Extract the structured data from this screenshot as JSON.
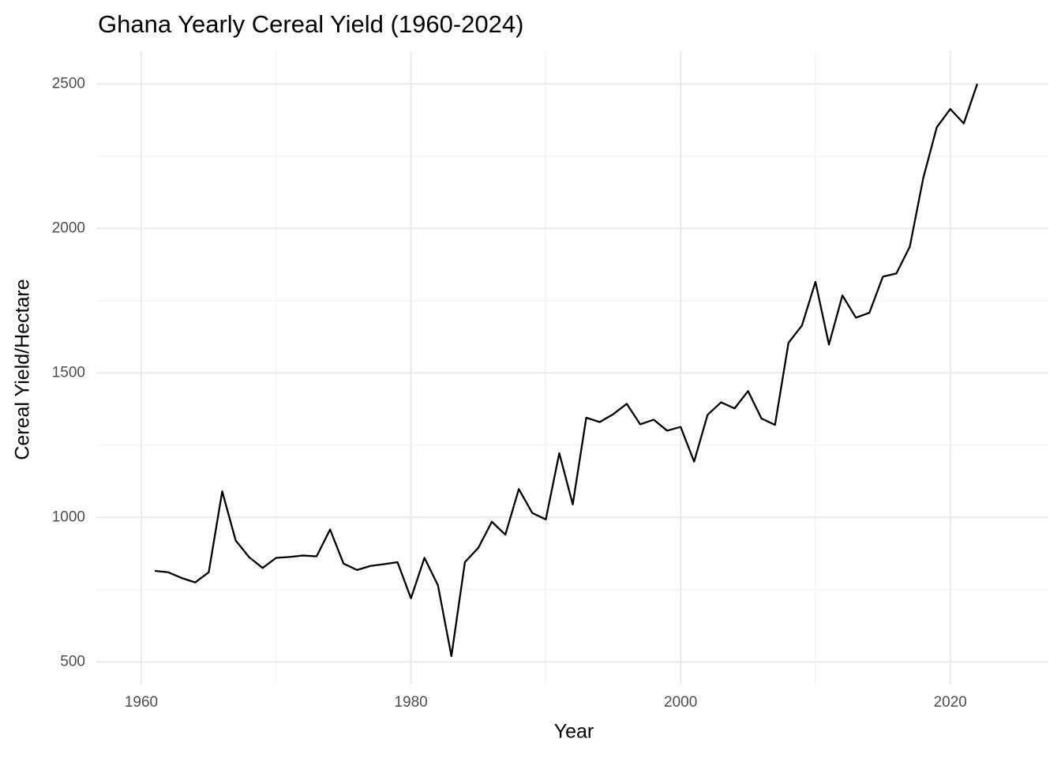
{
  "chart_data": {
    "type": "line",
    "title": "Ghana Yearly Cereal Yield (1960-2024)",
    "x_label": "Year",
    "y_label": "Cereal Yield/Hectare",
    "x": [
      1961,
      1962,
      1963,
      1964,
      1965,
      1966,
      1967,
      1968,
      1969,
      1970,
      1971,
      1972,
      1973,
      1974,
      1975,
      1976,
      1977,
      1978,
      1979,
      1980,
      1981,
      1982,
      1983,
      1984,
      1985,
      1986,
      1987,
      1988,
      1989,
      1990,
      1991,
      1992,
      1993,
      1994,
      1995,
      1996,
      1997,
      1998,
      1999,
      2000,
      2001,
      2002,
      2003,
      2004,
      2005,
      2006,
      2007,
      2008,
      2009,
      2010,
      2011,
      2012,
      2013,
      2014,
      2015,
      2016,
      2017,
      2018,
      2019,
      2020,
      2021,
      2022
    ],
    "values": [
      815,
      810,
      790,
      775,
      810,
      1090,
      920,
      862,
      825,
      860,
      863,
      868,
      865,
      958,
      840,
      818,
      832,
      838,
      845,
      720,
      860,
      765,
      520,
      845,
      895,
      985,
      940,
      1098,
      1015,
      993,
      1222,
      1045,
      1345,
      1330,
      1357,
      1393,
      1322,
      1338,
      1300,
      1313,
      1193,
      1355,
      1398,
      1377,
      1437,
      1342,
      1320,
      1604,
      1664,
      1815,
      1598,
      1768,
      1691,
      1708,
      1833,
      1844,
      1937,
      2175,
      2350,
      2413,
      2363,
      2500
    ],
    "color": "#000000",
    "xlim": [
      1957.95,
      2025.05
    ],
    "xticks": [
      1960,
      1980,
      2000,
      2020
    ],
    "ylim": [
      416,
      2599
    ],
    "yticks": [
      500,
      1000,
      1500,
      2000,
      2500
    ],
    "grid": true
  }
}
